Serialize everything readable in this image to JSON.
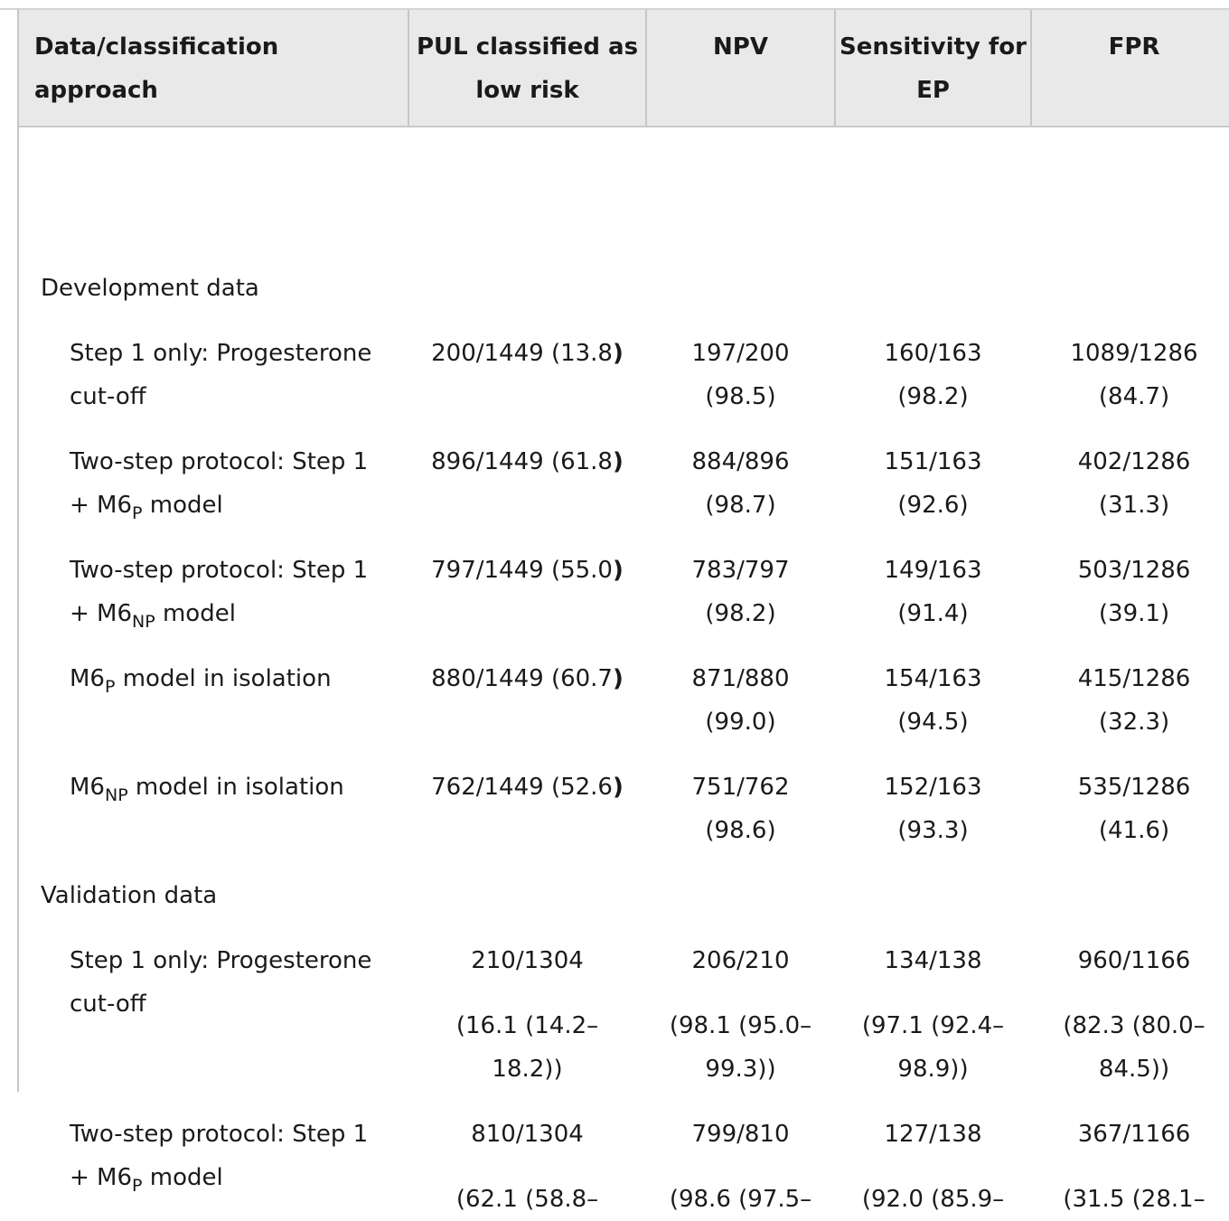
{
  "headers": [
    "Data/classification approach",
    "PUL classified as low risk",
    "NPV",
    "Sensitivity for EP",
    "FPR"
  ],
  "sections": [
    {
      "title": "Development data",
      "rows": [
        {
          "label_pre": "Step 1 only: Progesterone cut-off",
          "label_sub": "",
          "label_post": "",
          "pul": "200/1449 (13.8",
          "pul_close": ")",
          "npv": [
            "197/200",
            "(98.5)"
          ],
          "sens": [
            "160/163",
            "(98.2)"
          ],
          "fpr": [
            "1089/1286",
            "(84.7)"
          ]
        },
        {
          "label_pre": "Two-step protocol: Step 1 + M6",
          "label_sub": "P",
          "label_post": " model",
          "pul": "896/1449 (61.8",
          "pul_close": ")",
          "npv": [
            "884/896",
            "(98.7)"
          ],
          "sens": [
            "151/163",
            "(92.6)"
          ],
          "fpr": [
            "402/1286",
            "(31.3)"
          ]
        },
        {
          "label_pre": "Two-step protocol: Step 1 + M6",
          "label_sub": "NP",
          "label_post": " model",
          "pul": "797/1449 (55.0",
          "pul_close": ")",
          "npv": [
            "783/797",
            "(98.2)"
          ],
          "sens": [
            "149/163",
            "(91.4)"
          ],
          "fpr": [
            "503/1286",
            "(39.1)"
          ]
        },
        {
          "label_pre": "M6",
          "label_sub": "P",
          "label_post": " model in isolation",
          "pul": "880/1449 (60.7",
          "pul_close": ")",
          "npv": [
            "871/880",
            "(99.0)"
          ],
          "sens": [
            "154/163",
            "(94.5)"
          ],
          "fpr": [
            "415/1286",
            "(32.3)"
          ]
        },
        {
          "label_pre": "M6",
          "label_sub": "NP",
          "label_post": " model in isolation",
          "pul": "762/1449 (52.6",
          "pul_close": ")",
          "npv": [
            "751/762",
            "(98.6)"
          ],
          "sens": [
            "152/163",
            "(93.3)"
          ],
          "fpr": [
            "535/1286",
            "(41.6)"
          ]
        }
      ]
    },
    {
      "title": "Validation data",
      "rows": [
        {
          "label_pre": "Step 1 only: Progesterone cut-off",
          "label_sub": "",
          "label_post": "",
          "pul": [
            "210/1304",
            "(16.1 (14.2–",
            "18.2))"
          ],
          "npv": [
            "206/210",
            "(98.1 (95.0–",
            "99.3))"
          ],
          "sens": [
            "134/138",
            "(97.1 (92.4–",
            "98.9))"
          ],
          "fpr": [
            "960/1166",
            "(82.3 (80.0–",
            "84.5))"
          ]
        },
        {
          "label_pre": "Two-step protocol: Step 1 + M6",
          "label_sub": "P",
          "label_post": " model",
          "pul": [
            "810/1304",
            "(62.1 (58.8–"
          ],
          "npv": [
            "799/810",
            "(98.6 (97.5–"
          ],
          "sens": [
            "127/138",
            "(92.0 (85.9–"
          ],
          "fpr": [
            "367/1166",
            "(31.5 (28.1–"
          ]
        }
      ]
    }
  ]
}
